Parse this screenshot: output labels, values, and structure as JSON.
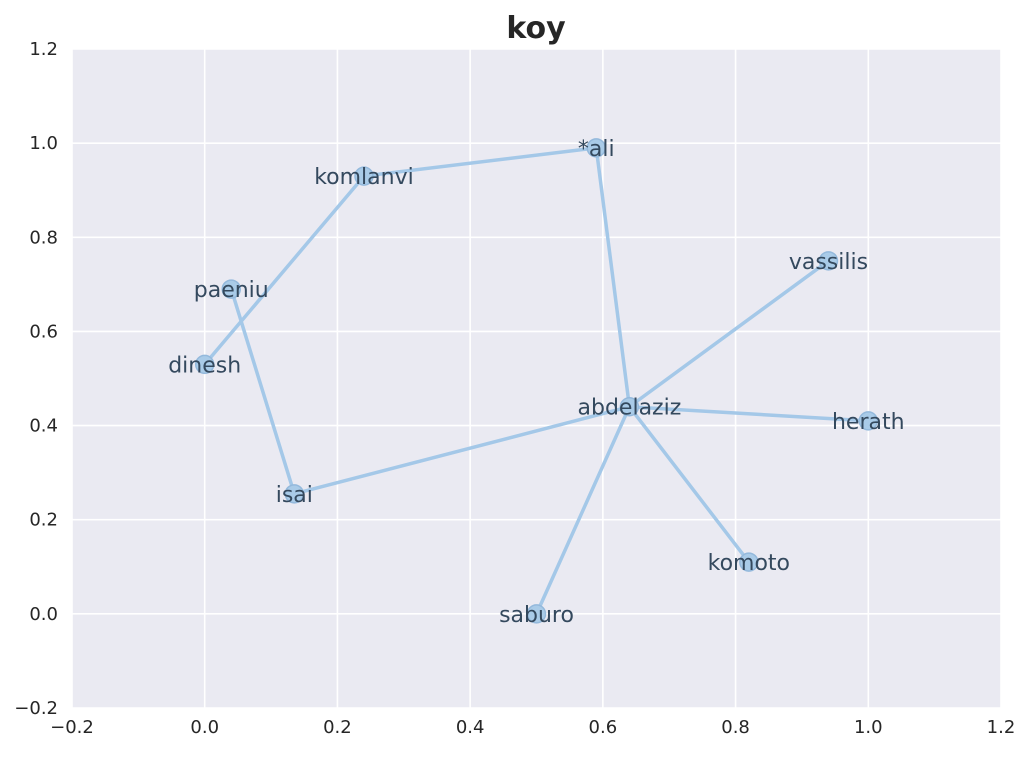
{
  "chart_data": {
    "type": "scatter",
    "title": "koy",
    "xlabel": "",
    "ylabel": "",
    "xlim": [
      -0.2,
      1.2
    ],
    "ylim": [
      -0.2,
      1.2
    ],
    "x_ticks": [
      "−0.2",
      "0.0",
      "0.2",
      "0.4",
      "0.6",
      "0.8",
      "1.0",
      "1.2"
    ],
    "y_ticks": [
      "−0.2",
      "0.0",
      "0.2",
      "0.4",
      "0.6",
      "0.8",
      "1.0",
      "1.2"
    ],
    "grid": true,
    "colors": {
      "background": "#eaeaf2",
      "edge": "#a4c8e8",
      "node": "#a9cbe8",
      "label": "#34495e"
    },
    "nodes": [
      {
        "name": "*ali",
        "x": 0.59,
        "y": 0.99
      },
      {
        "name": "komlanvi",
        "x": 0.24,
        "y": 0.93
      },
      {
        "name": "vassilis",
        "x": 0.94,
        "y": 0.75
      },
      {
        "name": "paeniu",
        "x": 0.04,
        "y": 0.69
      },
      {
        "name": "dinesh",
        "x": 0.0,
        "y": 0.53
      },
      {
        "name": "abdelaziz",
        "x": 0.64,
        "y": 0.44
      },
      {
        "name": "herath",
        "x": 1.0,
        "y": 0.41
      },
      {
        "name": "isai",
        "x": 0.135,
        "y": 0.255
      },
      {
        "name": "komoto",
        "x": 0.82,
        "y": 0.11
      },
      {
        "name": "saburo",
        "x": 0.5,
        "y": 0.0
      }
    ],
    "edges": [
      [
        "dinesh",
        "komlanvi"
      ],
      [
        "komlanvi",
        "*ali"
      ],
      [
        "*ali",
        "abdelaziz"
      ],
      [
        "paeniu",
        "isai"
      ],
      [
        "isai",
        "abdelaziz"
      ],
      [
        "abdelaziz",
        "vassilis"
      ],
      [
        "abdelaziz",
        "herath"
      ],
      [
        "abdelaziz",
        "komoto"
      ],
      [
        "abdelaziz",
        "saburo"
      ]
    ]
  }
}
